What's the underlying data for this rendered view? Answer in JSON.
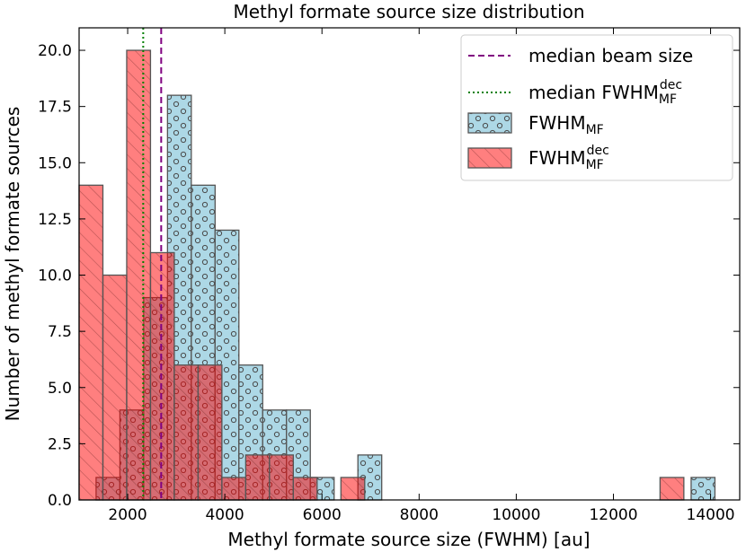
{
  "chart_data": {
    "type": "bar",
    "title": "Methyl formate source size distribution",
    "xlabel": "Methyl formate source size (FWHM) [au]",
    "ylabel": "Number of methyl formate sources",
    "xlim": [
      1000,
      14600
    ],
    "ylim": [
      0,
      21
    ],
    "bin_width": 490,
    "xticks": [
      2000,
      4000,
      6000,
      8000,
      10000,
      12000,
      14000
    ],
    "xtick_labels": [
      "2000",
      "4000",
      "6000",
      "8000",
      "10000",
      "12000",
      "14000"
    ],
    "yticks": [
      0,
      2.5,
      5,
      7.5,
      10,
      12.5,
      15,
      17.5,
      20
    ],
    "ytick_labels": [
      "0.0",
      "2.5",
      "5.0",
      "7.5",
      "10.0",
      "12.5",
      "15.0",
      "17.5",
      "20.0"
    ],
    "series": [
      {
        "name": "FWHM_MF",
        "legend_main": "FWHM",
        "legend_sub": "MF",
        "legend_sup": "",
        "color": "#add8e6",
        "hatch": "circles",
        "bins": [
          {
            "x": 1350,
            "count": 1
          },
          {
            "x": 1840,
            "count": 4
          },
          {
            "x": 2330,
            "count": 9
          },
          {
            "x": 2820,
            "count": 18
          },
          {
            "x": 3310,
            "count": 14
          },
          {
            "x": 3800,
            "count": 12
          },
          {
            "x": 4290,
            "count": 6
          },
          {
            "x": 4780,
            "count": 4
          },
          {
            "x": 5270,
            "count": 4
          },
          {
            "x": 5760,
            "count": 1
          },
          {
            "x": 6740,
            "count": 2
          },
          {
            "x": 13600,
            "count": 1
          }
        ]
      },
      {
        "name": "FWHM_MF^dec",
        "legend_main": "FWHM",
        "legend_sub": "MF",
        "legend_sup": "dec",
        "color": "#ff0000",
        "opacity": 0.5,
        "hatch": "diagonal",
        "bins": [
          {
            "x": 1000,
            "count": 14
          },
          {
            "x": 1490,
            "count": 10
          },
          {
            "x": 1980,
            "count": 20
          },
          {
            "x": 2470,
            "count": 11
          },
          {
            "x": 2960,
            "count": 6
          },
          {
            "x": 3450,
            "count": 6
          },
          {
            "x": 3940,
            "count": 1
          },
          {
            "x": 4430,
            "count": 2
          },
          {
            "x": 4920,
            "count": 2
          },
          {
            "x": 5410,
            "count": 1
          },
          {
            "x": 6390,
            "count": 1
          },
          {
            "x": 12960,
            "count": 1
          }
        ]
      }
    ],
    "vlines": [
      {
        "name": "median beam size",
        "x": 2690,
        "color": "#800080",
        "style": "dashed"
      },
      {
        "name": "median FWHM_MF^dec",
        "x": 2320,
        "color": "#008000",
        "style": "dotted"
      }
    ],
    "legend": {
      "placement": "top-right",
      "items": [
        {
          "kind": "line",
          "color": "#800080",
          "style": "dashed",
          "text": "median beam size",
          "sub": "",
          "sup": ""
        },
        {
          "kind": "line",
          "color": "#008000",
          "style": "dotted",
          "text": "median FWHM",
          "sub": "MF",
          "sup": "dec"
        },
        {
          "kind": "patch",
          "series": 0,
          "text": "FWHM",
          "sub": "MF",
          "sup": ""
        },
        {
          "kind": "patch",
          "series": 1,
          "text": "FWHM",
          "sub": "MF",
          "sup": "dec"
        }
      ]
    }
  }
}
